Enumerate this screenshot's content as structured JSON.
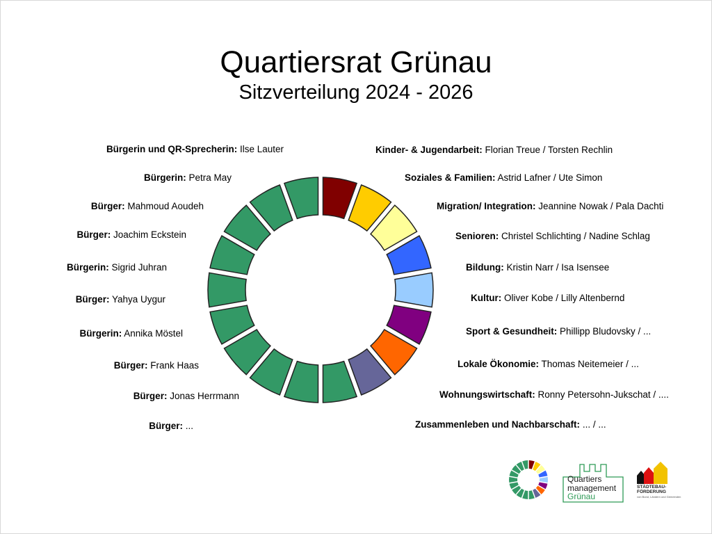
{
  "title": "Quartiersrat Grünau",
  "subtitle": "Sitzverteilung 2024 - 2026",
  "left_labels": [
    {
      "role": "Bürgerin und QR-Sprecherin:",
      "name": " Ilse Lauter"
    },
    {
      "role": "Bürgerin:",
      "name": " Petra May"
    },
    {
      "role": "Bürger:",
      "name": " Mahmoud Aoudeh"
    },
    {
      "role": "Bürger:",
      "name": " Joachim Eckstein"
    },
    {
      "role": "Bürgerin:",
      "name": " Sigrid Juhran"
    },
    {
      "role": "Bürger:",
      "name": " Yahya Uygur"
    },
    {
      "role": "Bürgerin:",
      "name": " Annika Möstel"
    },
    {
      "role": "Bürger:",
      "name": " Frank Haas"
    },
    {
      "role": "Bürger:",
      "name": " Jonas Herrmann"
    },
    {
      "role": "Bürger:",
      "name": " ..."
    }
  ],
  "right_labels": [
    {
      "role": "Kinder- & Jugendarbeit:",
      "name": " Florian Treue / Torsten Rechlin"
    },
    {
      "role": "Soziales & Familien:",
      "name": " Astrid Lafner / Ute Simon"
    },
    {
      "role": "Migration/ Integration:",
      "name": "  Jeannine Nowak / Pala Dachti"
    },
    {
      "role": "Senioren:",
      "name": " Christel Schlichting / Nadine Schlag"
    },
    {
      "role": "Bildung:",
      "name": "  Kristin Narr / Isa Isensee"
    },
    {
      "role": "Kultur:",
      "name": " Oliver Kobe / Lilly Altenbernd"
    },
    {
      "role": "Sport & Gesundheit:",
      "name": " Phillipp Bludovsky / ..."
    },
    {
      "role": "Lokale Ökonomie:",
      "name": " Thomas Neitemeier / ..."
    },
    {
      "role": "Wohnungswirtschaft:",
      "name": " Ronny Petersohn-Jukschat / ...."
    },
    {
      "role": "Zusammenleben und Nachbarschaft:",
      "name": "  ... / ..."
    }
  ],
  "ring_segments": [
    {
      "color": "#800000",
      "group": "Kinder- & Jugendarbeit"
    },
    {
      "color": "#ffcc00",
      "group": "Soziales & Familien"
    },
    {
      "color": "#ffff99",
      "group": "Migration/ Integration"
    },
    {
      "color": "#3366ff",
      "group": "Senioren"
    },
    {
      "color": "#99ccff",
      "group": "Bildung"
    },
    {
      "color": "#800080",
      "group": "Kultur"
    },
    {
      "color": "#ff6600",
      "group": "Sport & Gesundheit"
    },
    {
      "color": "#666699",
      "group": "Lokale Ökonomie"
    },
    {
      "color": "#339966",
      "group": "Bürger"
    },
    {
      "color": "#339966",
      "group": "Bürger"
    },
    {
      "color": "#339966",
      "group": "Bürger"
    },
    {
      "color": "#339966",
      "group": "Bürger"
    },
    {
      "color": "#339966",
      "group": "Bürger"
    },
    {
      "color": "#339966",
      "group": "Bürger"
    },
    {
      "color": "#339966",
      "group": "Bürger"
    },
    {
      "color": "#339966",
      "group": "Bürger"
    },
    {
      "color": "#339966",
      "group": "Bürger"
    },
    {
      "color": "#339966",
      "group": "Bürger"
    }
  ],
  "logo_qm": {
    "line1": "Quartiers",
    "line2": "management",
    "line3": "Grünau"
  },
  "logo_sb": {
    "line1": "STÄDTEBAU-",
    "line2": "FÖRDERUNG",
    "small": "von Bund, Ländern und Gemeinden"
  },
  "colors": {
    "brand_green": "#2e9a56",
    "outline": "#222222"
  }
}
